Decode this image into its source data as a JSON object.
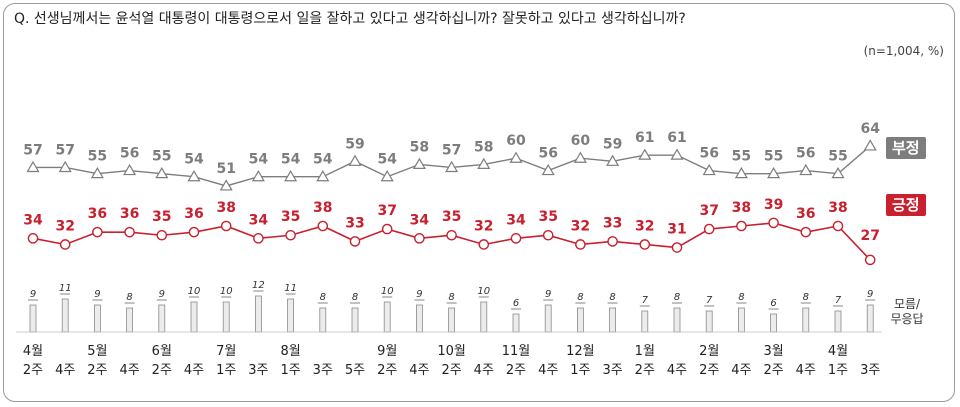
{
  "question": "Q. 선생님께서는 윤석열 대통령이 대통령으로서 일을 잘하고 있다고 생각하십니까? 잘못하고 있다고 생각하십니까?",
  "note": "(n=1,004, %)",
  "legend": {
    "negative": "부정",
    "positive": "긍정",
    "dontknow_line1": "모름/",
    "dontknow_line2": "무응답"
  },
  "colors": {
    "negative": "#7d7d7d",
    "positive": "#c8202f",
    "bar_fill": "#ececec",
    "bar_stroke": "#8a8a8a"
  },
  "chart_data": {
    "type": "line",
    "week_labels": [
      "2주",
      "4주",
      "2주",
      "4주",
      "2주",
      "4주",
      "1주",
      "3주",
      "1주",
      "3주",
      "5주",
      "2주",
      "4주",
      "2주",
      "4주",
      "2주",
      "4주",
      "1주",
      "3주",
      "2주",
      "4주",
      "2주",
      "4주",
      "2주",
      "4주",
      "1주",
      "3주"
    ],
    "month_labels": [
      {
        "index": 0,
        "label": "4월"
      },
      {
        "index": 2,
        "label": "5월"
      },
      {
        "index": 4,
        "label": "6월"
      },
      {
        "index": 6,
        "label": "7월"
      },
      {
        "index": 8,
        "label": "8월"
      },
      {
        "index": 11,
        "label": "9월"
      },
      {
        "index": 13,
        "label": "10월"
      },
      {
        "index": 15,
        "label": "11월"
      },
      {
        "index": 17,
        "label": "12월"
      },
      {
        "index": 19,
        "label": "1월"
      },
      {
        "index": 21,
        "label": "2월"
      },
      {
        "index": 23,
        "label": "3월"
      },
      {
        "index": 25,
        "label": "4월"
      }
    ],
    "series": [
      {
        "name": "부정",
        "values": [
          57,
          57,
          55,
          56,
          55,
          54,
          51,
          54,
          54,
          54,
          59,
          54,
          58,
          57,
          58,
          60,
          56,
          60,
          59,
          61,
          61,
          56,
          55,
          55,
          56,
          55,
          64
        ]
      },
      {
        "name": "긍정",
        "values": [
          34,
          32,
          36,
          36,
          35,
          36,
          38,
          34,
          35,
          38,
          33,
          37,
          34,
          35,
          32,
          34,
          35,
          32,
          33,
          32,
          31,
          37,
          38,
          39,
          36,
          38,
          27
        ]
      },
      {
        "name": "모름/무응답",
        "values": [
          9,
          11,
          9,
          8,
          9,
          10,
          10,
          12,
          11,
          8,
          8,
          10,
          9,
          8,
          10,
          6,
          9,
          8,
          8,
          7,
          8,
          7,
          8,
          6,
          8,
          7,
          9
        ]
      }
    ]
  }
}
